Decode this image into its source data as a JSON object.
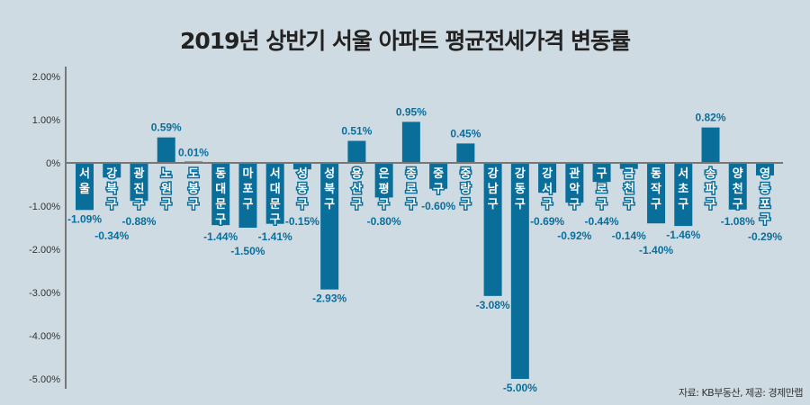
{
  "chart_data": {
    "type": "bar",
    "title": "2019년 상반기 서울 아파트 평균전세가격 변동률",
    "source": "자료: KB부동산, 제공: 경제만랩",
    "xlabel": "",
    "ylabel": "",
    "ylim": [
      -5,
      2
    ],
    "yticks": [
      2,
      1,
      0,
      -1,
      -2,
      -3,
      -4,
      -5
    ],
    "ytick_labels": [
      "2.00%",
      "1.00%",
      "0%",
      "-1.00%",
      "-2.00%",
      "-3.00%",
      "-4.00%",
      "-5.00%"
    ],
    "grid": false,
    "categories": [
      "서울",
      "강북구",
      "광진구",
      "노원구",
      "도봉구",
      "동대문구",
      "마포구",
      "서대문구",
      "성동구",
      "성북구",
      "용산구",
      "은평구",
      "종로구",
      "중구",
      "중랑구",
      "강남구",
      "강동구",
      "강서구",
      "관악구",
      "구로구",
      "금천구",
      "동작구",
      "서초구",
      "송파구",
      "양천구",
      "영등포구"
    ],
    "values": [
      -1.09,
      -0.34,
      -0.88,
      0.59,
      0.01,
      -1.44,
      -1.5,
      -1.41,
      -0.15,
      -2.93,
      0.51,
      -0.8,
      0.95,
      -0.6,
      0.45,
      -3.08,
      -5.0,
      -0.69,
      -0.92,
      -0.44,
      -0.14,
      -1.4,
      -1.46,
      0.82,
      -1.08,
      -0.29
    ],
    "value_labels": [
      "-1.09%",
      "-0.34%",
      "-0.88%",
      "0.59%",
      "0.01%",
      "-1.44%",
      "-1.50%",
      "-1.41%",
      "-0.15%",
      "-2.93%",
      "0.51%",
      "-0.80%",
      "0.95%",
      "-0.60%",
      "0.45%",
      "-3.08%",
      "-5.00%",
      "-0.69%",
      "-0.92%",
      "-0.44%",
      "-0.14%",
      "-1.40%",
      "-1.46%",
      "0.82%",
      "-1.08%",
      "-0.29%"
    ],
    "bar_color": "#0a6e9a"
  }
}
